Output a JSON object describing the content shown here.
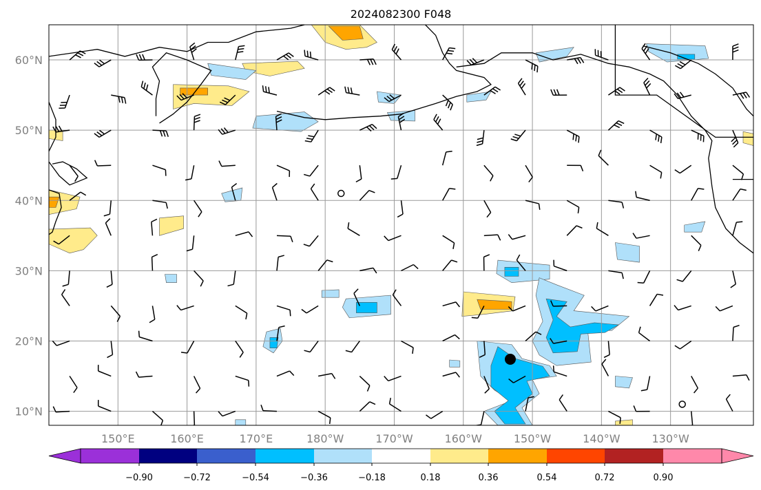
{
  "title": "2024082300 F048",
  "map": {
    "projection": "plate carree",
    "lon_range": [
      140,
      242
    ],
    "lat_range": [
      8,
      65
    ],
    "grid": true,
    "lat_labels": [
      {
        "lat": 60,
        "label": "60°N"
      },
      {
        "lat": 50,
        "label": "50°N"
      },
      {
        "lat": 40,
        "label": "40°N"
      },
      {
        "lat": 30,
        "label": "30°N"
      },
      {
        "lat": 20,
        "label": "20°N"
      },
      {
        "lat": 10,
        "label": "10°N"
      }
    ],
    "lon_labels": [
      {
        "lon": 150,
        "label": "150°E"
      },
      {
        "lon": 160,
        "label": "160°E"
      },
      {
        "lon": 170,
        "label": "170°E"
      },
      {
        "lon": 180,
        "label": "180°W"
      },
      {
        "lon": 190,
        "label": "170°W"
      },
      {
        "lon": 200,
        "label": "160°W"
      },
      {
        "lon": 210,
        "label": "150°W"
      },
      {
        "lon": 220,
        "label": "140°W"
      },
      {
        "lon": 230,
        "label": "130°W"
      }
    ],
    "storm_marker": {
      "lon": 206.8,
      "lat": 17.4
    },
    "calm_circles": [
      {
        "lon": 182.3,
        "lat": 41.0
      },
      {
        "lon": 231.7,
        "lat": 11.0
      }
    ]
  },
  "colorbar": {
    "ticks": [
      "−0.90",
      "−0.72",
      "−0.54",
      "−0.36",
      "−0.18",
      "0.18",
      "0.36",
      "0.54",
      "0.72",
      "0.90"
    ],
    "colors": [
      "#9b30d9",
      "#000080",
      "#3a5fcd",
      "#00bfff",
      "#b0e0fa",
      "#ffffff",
      "#ffeb8b",
      "#ffa500",
      "#ff4500",
      "#b22222",
      "#ff88aa"
    ],
    "extend": "both"
  },
  "shaded_regions": [
    {
      "level": "pos1",
      "color": "#ffeb8b",
      "pts": [
        [
          178,
          65
        ],
        [
          185,
          65
        ],
        [
          187.5,
          62.5
        ],
        [
          186,
          61.8
        ],
        [
          183,
          61.5
        ],
        [
          180,
          62.5
        ]
      ]
    },
    {
      "level": "pos2",
      "color": "#ffa500",
      "pts": [
        [
          180.5,
          64.8
        ],
        [
          185,
          64.8
        ],
        [
          185.5,
          63
        ],
        [
          182.5,
          62.8
        ]
      ]
    },
    {
      "level": "pos1",
      "color": "#ffeb8b",
      "pts": [
        [
          168,
          59.5
        ],
        [
          176,
          59.8
        ],
        [
          177,
          58.8
        ],
        [
          172,
          57.7
        ],
        [
          168.5,
          58.4
        ]
      ]
    },
    {
      "level": "pos1",
      "color": "#ffeb8b",
      "pts": [
        [
          158,
          56.5
        ],
        [
          166,
          56.3
        ],
        [
          169,
          55.5
        ],
        [
          166.5,
          53.5
        ],
        [
          161,
          53.8
        ],
        [
          158,
          53
        ]
      ]
    },
    {
      "level": "pos2",
      "color": "#ffa500",
      "pts": [
        [
          159,
          56
        ],
        [
          163,
          56
        ],
        [
          163,
          55
        ],
        [
          159,
          55
        ]
      ]
    },
    {
      "level": "pos1",
      "color": "#ffeb8b",
      "pts": [
        [
          140,
          41.5
        ],
        [
          144.5,
          40.5
        ],
        [
          144,
          38.8
        ],
        [
          140,
          38
        ]
      ]
    },
    {
      "level": "pos2",
      "color": "#ffa500",
      "pts": [
        [
          140,
          40.5
        ],
        [
          141.5,
          40.5
        ],
        [
          141,
          39
        ],
        [
          140,
          39
        ]
      ]
    },
    {
      "level": "pos1",
      "color": "#ffeb8b",
      "pts": [
        [
          140,
          35.9
        ],
        [
          146,
          36.1
        ],
        [
          147,
          35
        ],
        [
          145,
          33
        ],
        [
          143,
          32.5
        ],
        [
          140,
          33.8
        ]
      ]
    },
    {
      "level": "pos1",
      "color": "#ffeb8b",
      "pts": [
        [
          156,
          37.5
        ],
        [
          159.5,
          37.8
        ],
        [
          159.5,
          36
        ],
        [
          156,
          35
        ]
      ]
    },
    {
      "level": "pos1",
      "color": "#ffeb8b",
      "pts": [
        [
          140,
          50
        ],
        [
          142,
          50
        ],
        [
          142,
          48.5
        ],
        [
          140,
          48.8
        ]
      ]
    },
    {
      "level": "pos1",
      "color": "#ffeb8b",
      "pts": [
        [
          240.5,
          49.8
        ],
        [
          242,
          49.5
        ],
        [
          242,
          47.8
        ],
        [
          240.5,
          48.2
        ]
      ]
    },
    {
      "level": "pos1",
      "color": "#ffeb8b",
      "pts": [
        [
          200,
          27
        ],
        [
          207.5,
          26.3
        ],
        [
          207.2,
          24.3
        ],
        [
          203,
          23.8
        ],
        [
          199.8,
          23.5
        ]
      ]
    },
    {
      "level": "pos2",
      "color": "#ffa500",
      "pts": [
        [
          202,
          25.9
        ],
        [
          207,
          25.6
        ],
        [
          207,
          24.5
        ],
        [
          202.5,
          24.5
        ]
      ]
    },
    {
      "level": "pos1",
      "color": "#ffeb8b",
      "pts": [
        [
          222,
          8.6
        ],
        [
          224.5,
          8.8
        ],
        [
          224.5,
          8
        ],
        [
          222,
          8
        ]
      ]
    },
    {
      "level": "neg1",
      "color": "#b0e0fa",
      "pts": [
        [
          163,
          59.5
        ],
        [
          170,
          58.5
        ],
        [
          168.5,
          57.2
        ],
        [
          163.5,
          57.8
        ]
      ]
    },
    {
      "level": "neg1",
      "color": "#b0e0fa",
      "pts": [
        [
          170,
          52
        ],
        [
          177,
          52.6
        ],
        [
          179,
          51.2
        ],
        [
          176.5,
          49.8
        ],
        [
          169.5,
          50.3
        ]
      ]
    },
    {
      "level": "neg1",
      "color": "#b0e0fa",
      "pts": [
        [
          187.5,
          55.5
        ],
        [
          191,
          55
        ],
        [
          190,
          53.8
        ],
        [
          187.7,
          54
        ]
      ]
    },
    {
      "level": "neg1",
      "color": "#b0e0fa",
      "pts": [
        [
          189,
          52.5
        ],
        [
          193,
          52.8
        ],
        [
          193,
          51.3
        ],
        [
          189.5,
          51.4
        ]
      ]
    },
    {
      "level": "neg1",
      "color": "#b0e0fa",
      "pts": [
        [
          200.5,
          55
        ],
        [
          204,
          55.5
        ],
        [
          203.3,
          54.3
        ],
        [
          200.5,
          54
        ]
      ]
    },
    {
      "level": "neg1",
      "color": "#b0e0fa",
      "pts": [
        [
          210.5,
          61
        ],
        [
          216,
          61.8
        ],
        [
          215,
          60.5
        ],
        [
          211,
          59.7
        ]
      ]
    },
    {
      "level": "neg1",
      "color": "#b0e0fa",
      "pts": [
        [
          226.5,
          62.3
        ],
        [
          235,
          62
        ],
        [
          235.5,
          60.2
        ],
        [
          229.5,
          59.7
        ],
        [
          226.8,
          61.2
        ]
      ]
    },
    {
      "level": "neg2",
      "color": "#00bfff",
      "pts": [
        [
          231,
          60.8
        ],
        [
          233.5,
          60.8
        ],
        [
          233.5,
          60.1
        ],
        [
          231,
          60.1
        ]
      ]
    },
    {
      "level": "neg1",
      "color": "#b0e0fa",
      "pts": [
        [
          165,
          41
        ],
        [
          168,
          41.8
        ],
        [
          167.8,
          40
        ],
        [
          165.5,
          39.8
        ]
      ]
    },
    {
      "level": "neg1",
      "color": "#b0e0fa",
      "pts": [
        [
          232,
          36.5
        ],
        [
          235,
          37
        ],
        [
          234.5,
          35.5
        ],
        [
          232,
          35.5
        ]
      ]
    },
    {
      "level": "neg1",
      "color": "#b0e0fa",
      "pts": [
        [
          222,
          34
        ],
        [
          225.5,
          33.5
        ],
        [
          225.5,
          31.2
        ],
        [
          222.3,
          31.6
        ]
      ]
    },
    {
      "level": "neg1",
      "color": "#b0e0fa",
      "pts": [
        [
          205,
          31.5
        ],
        [
          212.5,
          30.8
        ],
        [
          212.5,
          28.8
        ],
        [
          207,
          28.3
        ],
        [
          204.8,
          29.6
        ]
      ]
    },
    {
      "level": "neg2",
      "color": "#00bfff",
      "pts": [
        [
          206,
          30.5
        ],
        [
          208,
          30.5
        ],
        [
          208,
          29.2
        ],
        [
          206,
          29.2
        ]
      ]
    },
    {
      "level": "neg1",
      "color": "#b0e0fa",
      "pts": [
        [
          179.5,
          27.2
        ],
        [
          182,
          27.3
        ],
        [
          182,
          26.2
        ],
        [
          179.5,
          26.2
        ]
      ]
    },
    {
      "level": "neg1",
      "color": "#b0e0fa",
      "pts": [
        [
          183,
          26
        ],
        [
          189.5,
          26.5
        ],
        [
          189.5,
          23.8
        ],
        [
          183.5,
          23.3
        ],
        [
          182.5,
          24.8
        ]
      ]
    },
    {
      "level": "neg2",
      "color": "#00bfff",
      "pts": [
        [
          184.5,
          25.5
        ],
        [
          187.5,
          25.5
        ],
        [
          187.5,
          24
        ],
        [
          184.5,
          24
        ]
      ]
    },
    {
      "level": "neg1",
      "color": "#b0e0fa",
      "pts": [
        [
          171.5,
          21.3
        ],
        [
          173.5,
          21.8
        ],
        [
          173.8,
          20
        ],
        [
          172.5,
          18.3
        ],
        [
          171,
          19.2
        ]
      ]
    },
    {
      "level": "neg2",
      "color": "#00bfff",
      "pts": [
        [
          172,
          20.5
        ],
        [
          173.2,
          20.5
        ],
        [
          173,
          19
        ],
        [
          172,
          19
        ]
      ]
    },
    {
      "level": "neg1",
      "color": "#b0e0fa",
      "pts": [
        [
          211,
          29
        ],
        [
          213.5,
          28
        ],
        [
          217.5,
          26.5
        ],
        [
          216,
          24.3
        ],
        [
          219,
          24
        ],
        [
          224,
          23.5
        ],
        [
          221.5,
          21.5
        ],
        [
          218,
          21.5
        ],
        [
          218.5,
          17
        ],
        [
          213.5,
          16.5
        ],
        [
          211,
          18
        ],
        [
          210,
          20
        ],
        [
          211.5,
          22.8
        ],
        [
          210.5,
          26.5
        ]
      ]
    },
    {
      "level": "neg2",
      "color": "#00bfff",
      "pts": [
        [
          212,
          26
        ],
        [
          215,
          25.6
        ],
        [
          213.5,
          23.5
        ],
        [
          215.5,
          22
        ],
        [
          219,
          22.6
        ],
        [
          222.5,
          22.3
        ],
        [
          220.5,
          21.2
        ],
        [
          217,
          21
        ],
        [
          216.5,
          18.5
        ],
        [
          213,
          18.3
        ],
        [
          212,
          20.5
        ],
        [
          213,
          23
        ]
      ]
    },
    {
      "level": "neg1",
      "color": "#b0e0fa",
      "pts": [
        [
          202,
          20
        ],
        [
          207,
          19.5
        ],
        [
          208.5,
          17.5
        ],
        [
          212.5,
          16.5
        ],
        [
          213.5,
          15
        ],
        [
          210,
          14.5
        ],
        [
          211,
          12.5
        ],
        [
          208.5,
          10.5
        ],
        [
          210,
          8
        ],
        [
          205,
          8
        ],
        [
          203,
          10
        ],
        [
          207,
          11.5
        ],
        [
          204.5,
          13
        ],
        [
          202.5,
          15
        ]
      ]
    },
    {
      "level": "neg2",
      "color": "#00bfff",
      "pts": [
        [
          205,
          19.2
        ],
        [
          207.5,
          17.5
        ],
        [
          211.5,
          16.4
        ],
        [
          212.5,
          15
        ],
        [
          209.2,
          14.3
        ],
        [
          210,
          12.5
        ],
        [
          207.5,
          10.5
        ],
        [
          209,
          8.2
        ],
        [
          206,
          8.2
        ],
        [
          204.5,
          10
        ],
        [
          206.5,
          11.5
        ],
        [
          204,
          13.5
        ],
        [
          204,
          16.5
        ]
      ]
    },
    {
      "level": "neg1",
      "color": "#b0e0fa",
      "pts": [
        [
          198,
          17.3
        ],
        [
          199.5,
          17.2
        ],
        [
          199.5,
          16.3
        ],
        [
          198,
          16.3
        ]
      ]
    },
    {
      "level": "neg1",
      "color": "#b0e0fa",
      "pts": [
        [
          222,
          15
        ],
        [
          224.5,
          14.8
        ],
        [
          224,
          13.3
        ],
        [
          222,
          13.5
        ]
      ]
    },
    {
      "level": "neg1",
      "color": "#b0e0fa",
      "pts": [
        [
          167,
          8.8
        ],
        [
          168.5,
          8.8
        ],
        [
          168.5,
          8
        ],
        [
          167,
          8
        ]
      ]
    },
    {
      "level": "neg1",
      "color": "#b0e0fa",
      "pts": [
        [
          156.8,
          29.5
        ],
        [
          158.5,
          29.5
        ],
        [
          158.5,
          28.3
        ],
        [
          157,
          28.3
        ]
      ]
    }
  ],
  "coastlines": [
    [
      [
        140,
        60.5
      ],
      [
        147,
        61.5
      ],
      [
        151,
        60.5
      ],
      [
        156,
        61.8
      ],
      [
        160,
        61.2
      ],
      [
        163,
        62.5
      ],
      [
        166,
        62.5
      ],
      [
        170,
        64
      ],
      [
        175,
        64.5
      ],
      [
        177,
        65
      ]
    ],
    [
      [
        156,
        51
      ],
      [
        158,
        52.3
      ],
      [
        160,
        54
      ],
      [
        162,
        56.5
      ],
      [
        163.5,
        58.5
      ],
      [
        160,
        60
      ],
      [
        157,
        61
      ],
      [
        155,
        59
      ],
      [
        156,
        57
      ],
      [
        155.5,
        54.5
      ],
      [
        155.5,
        52
      ]
    ],
    [
      [
        140,
        54
      ],
      [
        141,
        51.5
      ],
      [
        141,
        49
      ],
      [
        140,
        47
      ]
    ],
    [
      [
        140,
        45.5
      ],
      [
        141.5,
        43.5
      ],
      [
        143,
        42.2
      ],
      [
        145.5,
        43.2
      ],
      [
        144,
        44.5
      ],
      [
        142,
        45.5
      ],
      [
        140.5,
        45.2
      ]
    ],
    [
      [
        140,
        41.5
      ],
      [
        141.5,
        41
      ],
      [
        141.8,
        39
      ],
      [
        141,
        37
      ],
      [
        140.5,
        35.5
      ],
      [
        139.8,
        35
      ]
    ],
    [
      [
        199,
        59
      ],
      [
        203,
        59.5
      ],
      [
        205.5,
        61
      ],
      [
        210,
        61
      ],
      [
        213,
        60
      ],
      [
        217,
        60.8
      ],
      [
        221,
        59.5
      ],
      [
        224,
        59
      ],
      [
        227,
        58
      ],
      [
        229,
        57
      ],
      [
        231,
        55
      ],
      [
        233,
        52
      ],
      [
        235,
        50
      ],
      [
        236,
        48.5
      ],
      [
        235.5,
        46
      ],
      [
        236,
        42
      ],
      [
        236.5,
        39
      ],
      [
        238,
        36
      ],
      [
        240,
        34
      ],
      [
        242,
        32.5
      ]
    ],
    [
      [
        194.5,
        65
      ],
      [
        196,
        63.5
      ],
      [
        197,
        61
      ],
      [
        198,
        59.5
      ],
      [
        199,
        58.5
      ],
      [
        203,
        57.5
      ],
      [
        204,
        56.5
      ],
      [
        202,
        55.5
      ],
      [
        199,
        54.8
      ],
      [
        196,
        53.8
      ],
      [
        194,
        53.2
      ],
      [
        191,
        52.3
      ],
      [
        188,
        52
      ],
      [
        184,
        51.8
      ],
      [
        180,
        51.5
      ],
      [
        177,
        51.8
      ],
      [
        173,
        52.7
      ]
    ],
    [
      [
        226,
        62
      ],
      [
        230,
        61
      ],
      [
        234,
        59.5
      ],
      [
        236.5,
        58
      ],
      [
        239,
        56
      ],
      [
        241,
        53
      ],
      [
        242,
        52
      ]
    ],
    [
      [
        222,
        65
      ],
      [
        222,
        55
      ],
      [
        228,
        55
      ],
      [
        236.5,
        49
      ],
      [
        242,
        49
      ]
    ],
    [
      [
        239,
        43
      ],
      [
        242,
        43
      ]
    ],
    [
      [
        140,
        34
      ],
      [
        139.8,
        33.7
      ]
    ]
  ],
  "barbs": []
}
